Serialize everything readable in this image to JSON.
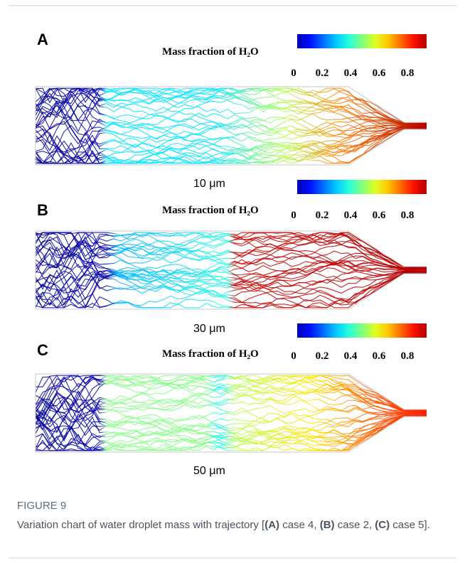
{
  "figure": {
    "panels": [
      {
        "label": "A",
        "colorbar_title": "Mass fraction of H₂O",
        "colorbar_ticks": [
          0,
          0.2,
          0.4,
          0.6,
          0.8
        ],
        "scale_label": "10 μm"
      },
      {
        "label": "B",
        "colorbar_title": "Mass fraction of H₂O",
        "colorbar_ticks": [
          0,
          0.2,
          0.4,
          0.6,
          0.8
        ],
        "scale_label": "30 μm"
      },
      {
        "label": "C",
        "colorbar_title": "Mass fraction of H₂O",
        "colorbar_ticks": [
          0,
          0.2,
          0.4,
          0.6,
          0.8
        ],
        "scale_label": "50 μm"
      }
    ],
    "caption": {
      "label": "FIGURE 9",
      "parts": [
        {
          "text": "Variation chart of water droplet mass with trajectory [",
          "bold": false
        },
        {
          "text": "(A)",
          "bold": true
        },
        {
          "text": " case 4, ",
          "bold": false
        },
        {
          "text": "(B)",
          "bold": true
        },
        {
          "text": " case 2, ",
          "bold": false
        },
        {
          "text": "(C)",
          "bold": true
        },
        {
          "text": " case 5].",
          "bold": false
        }
      ]
    }
  }
}
